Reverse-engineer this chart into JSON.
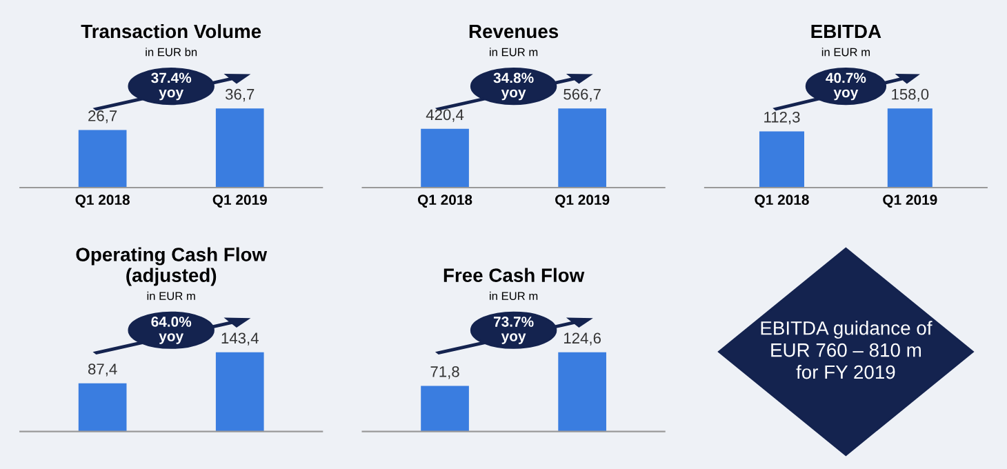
{
  "chart_data": [
    {
      "type": "bar",
      "title": "Transaction Volume",
      "subtitle": "in EUR bn",
      "categories": [
        "Q1 2018",
        "Q1 2019"
      ],
      "values": [
        26.7,
        36.7
      ],
      "value_labels": [
        "26,7",
        "36,7"
      ],
      "color": "#3a7de0",
      "annotations": [
        "37.4%\nyoy"
      ]
    },
    {
      "type": "bar",
      "title": "Revenues",
      "subtitle": "in EUR m",
      "categories": [
        "Q1 2018",
        "Q1 2019"
      ],
      "values": [
        420.4,
        566.7
      ],
      "value_labels": [
        "420,4",
        "566,7"
      ],
      "color": "#3a7de0",
      "annotations": [
        "34.8%\nyoy"
      ]
    },
    {
      "type": "bar",
      "title": "EBITDA",
      "subtitle": "in EUR m",
      "categories": [
        "Q1 2018",
        "Q1 2019"
      ],
      "values": [
        112.3,
        158.0
      ],
      "value_labels": [
        "112,3",
        "158,0"
      ],
      "color": "#3a7de0",
      "annotations": [
        "40.7%\nyoy"
      ]
    },
    {
      "type": "bar",
      "title": "Operating Cash Flow\n(adjusted)",
      "subtitle": "in EUR m",
      "categories": [
        null,
        null
      ],
      "values": [
        87.4,
        143.4
      ],
      "value_labels": [
        "87,4",
        "143,4"
      ],
      "color": "#3a7de0",
      "annotations": [
        "64.0%\nyoy"
      ]
    },
    {
      "type": "bar",
      "title": "Free Cash Flow",
      "subtitle": "in EUR m",
      "categories": [
        null,
        null
      ],
      "values": [
        71.8,
        124.6
      ],
      "value_labels": [
        "71,8",
        "124,6"
      ],
      "color": "#3a7de0",
      "annotations": [
        "73.7%\nyoy"
      ]
    },
    {
      "type": "other",
      "annotations": [
        "EBITDA guidance of\nEUR 760 – 810 m\nfor FY 2019"
      ]
    }
  ]
}
